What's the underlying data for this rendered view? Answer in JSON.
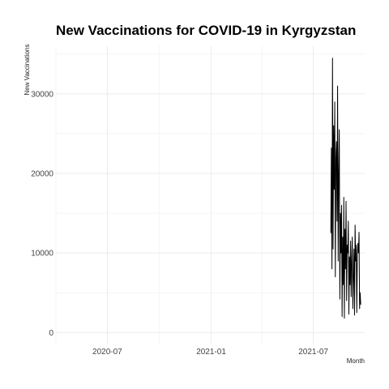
{
  "chart_data": {
    "type": "line",
    "title": "New Vaccinations for COVID-19 in Kyrgyzstan",
    "xlabel": "Month",
    "ylabel": "New Vaccinations",
    "x_ticks": [
      "2020-07",
      "2021-01",
      "2021-07"
    ],
    "y_ticks": [
      0,
      10000,
      20000,
      30000
    ],
    "xlim": [
      "2020-04-01",
      "2021-09-30"
    ],
    "ylim": [
      -1500,
      36000
    ],
    "grid": true,
    "legend": "none",
    "colors": {
      "line": "#000000",
      "grid": "#ebebeb"
    },
    "series": [
      {
        "x": [
          "2021-08-01",
          "2021-08-02",
          "2021-08-03",
          "2021-08-04",
          "2021-08-05",
          "2021-08-06",
          "2021-08-07",
          "2021-08-08",
          "2021-08-09",
          "2021-08-10",
          "2021-08-11",
          "2021-08-12",
          "2021-08-13",
          "2021-08-14",
          "2021-08-15",
          "2021-08-16",
          "2021-08-17",
          "2021-08-18",
          "2021-08-19",
          "2021-08-20",
          "2021-08-21",
          "2021-08-22",
          "2021-08-23",
          "2021-08-24",
          "2021-08-25",
          "2021-08-26",
          "2021-08-27",
          "2021-08-28",
          "2021-08-29",
          "2021-08-30",
          "2021-08-31",
          "2021-09-01",
          "2021-09-02",
          "2021-09-03",
          "2021-09-04",
          "2021-09-05",
          "2021-09-06",
          "2021-09-07",
          "2021-09-08",
          "2021-09-09",
          "2021-09-10",
          "2021-09-11",
          "2021-09-12",
          "2021-09-13",
          "2021-09-14",
          "2021-09-15",
          "2021-09-16",
          "2021-09-17",
          "2021-09-18",
          "2021-09-19",
          "2021-09-20",
          "2021-09-21",
          "2021-09-22",
          "2021-09-23"
        ],
        "values": [
          12500,
          23200,
          8000,
          34500,
          10500,
          26000,
          18000,
          29000,
          7000,
          22000,
          24000,
          14000,
          31000,
          9000,
          20000,
          25500,
          4200,
          15000,
          10000,
          16000,
          2000,
          12000,
          6000,
          17000,
          1800,
          13000,
          8000,
          16500,
          4000,
          11000,
          10000,
          14000,
          2300,
          9500,
          6000,
          11500,
          4500,
          9000,
          12000,
          3000,
          7000,
          10500,
          2200,
          13500,
          9000,
          11000,
          2500,
          9800,
          11200,
          10000,
          12600,
          3000,
          5000,
          3500
        ]
      }
    ]
  }
}
